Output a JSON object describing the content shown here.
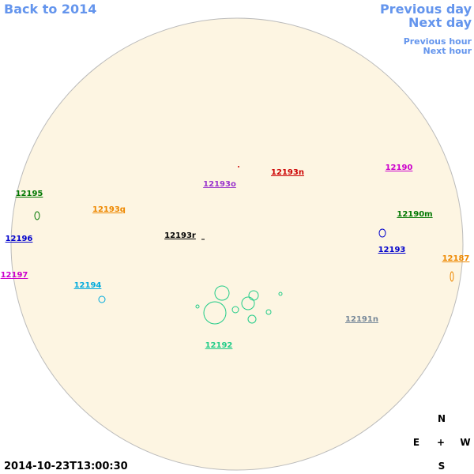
{
  "nav": {
    "back": "Back to 2014",
    "previous_day": "Previous day",
    "next_day": "Next day",
    "previous_hour": "Previous hour",
    "next_hour": "Next hour"
  },
  "regions": [
    {
      "label": "12195",
      "color": "#007700"
    },
    {
      "label": "12196",
      "color": "#0000cc"
    },
    {
      "label": "12197",
      "color": "#cc00cc"
    },
    {
      "label": "12193q",
      "color": "#ee8800"
    },
    {
      "label": "12194",
      "color": "#00aadd"
    },
    {
      "label": "12193o",
      "color": "#9933cc"
    },
    {
      "label": "12193n",
      "color": "#cc0000"
    },
    {
      "label": "12193r",
      "color": "#000000"
    },
    {
      "label": "12192",
      "color": "#22cc88"
    },
    {
      "label": "12190",
      "color": "#cc00cc"
    },
    {
      "label": "12190m",
      "color": "#007700"
    },
    {
      "label": "12193",
      "color": "#0000cc"
    },
    {
      "label": "12187",
      "color": "#ee8800"
    },
    {
      "label": "12191n",
      "color": "#778899"
    }
  ],
  "compass": {
    "north": "N",
    "east": "E",
    "center": "+",
    "west": "W",
    "south": "S"
  },
  "timestamp": "2014-10-23T13:00:30"
}
